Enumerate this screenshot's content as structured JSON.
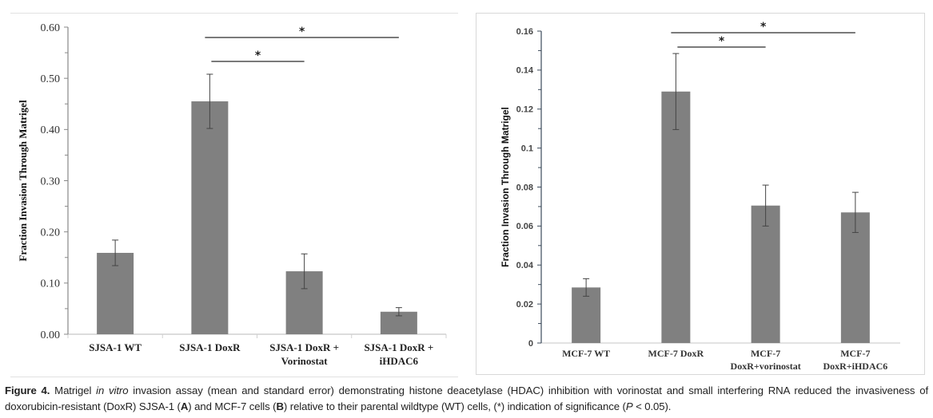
{
  "chart_data": [
    {
      "panel": "A",
      "type": "bar",
      "title": "",
      "xlabel": "",
      "ylabel": "Fraction Invasion Through Matrigel",
      "ylim": [
        0,
        0.6
      ],
      "yticks": [
        "0.00",
        "0.10",
        "0.20",
        "0.30",
        "0.40",
        "0.50",
        "0.60"
      ],
      "categories": [
        [
          "SJSA-1 WT"
        ],
        [
          "SJSA-1 DoxR"
        ],
        [
          "SJSA-1 DoxR +",
          "Vorinostat"
        ],
        [
          "SJSA-1 DoxR +",
          "iHDAC6"
        ]
      ],
      "values": [
        0.159,
        0.455,
        0.123,
        0.044
      ],
      "errors": [
        0.025,
        0.053,
        0.034,
        0.008
      ],
      "bar_color": "#808080",
      "grid": false,
      "significance": [
        {
          "from": 1,
          "to": 2,
          "label": "*"
        },
        {
          "from": 1,
          "to": 3,
          "label": "*"
        }
      ]
    },
    {
      "panel": "B",
      "type": "bar",
      "title": "",
      "xlabel": "",
      "ylabel": "Fraction Invasion Through Matrigel",
      "ylim": [
        0,
        0.16
      ],
      "yticks": [
        "0",
        "0.02",
        "0.04",
        "0.06",
        "0.08",
        "0.1",
        "0.12",
        "0.14",
        "0.16"
      ],
      "categories": [
        [
          "MCF-7 WT"
        ],
        [
          "MCF-7 DoxR"
        ],
        [
          "MCF-7",
          "DoxR+vorinostat"
        ],
        [
          "MCF-7",
          "DoxR+iHDAC6"
        ]
      ],
      "values": [
        0.0285,
        0.129,
        0.0705,
        0.067
      ],
      "errors": [
        0.0045,
        0.0195,
        0.0105,
        0.0103
      ],
      "bar_color": "#808080",
      "grid": false,
      "significance": [
        {
          "from": 1,
          "to": 2,
          "label": "*"
        },
        {
          "from": 1,
          "to": 3,
          "label": "*"
        }
      ]
    }
  ],
  "caption": {
    "label": "Figure 4.",
    "part1": " Matrigel ",
    "italic1": "in vitro",
    "part2": " invasion assay (mean and standard error) demonstrating histone deacetylase (HDAC) inhibition with vorinostat and small interfering RNA reduced the invasiveness of doxorubicin-resistant (DoxR) SJSA-1 (",
    "panelA": "A",
    "part3": ") and MCF-7 cells (",
    "panelB": "B",
    "part4": ") relative to their parental wildtype (WT) cells, (*) indication of significance (",
    "italicP": "P",
    "part5": " < 0.05)."
  }
}
